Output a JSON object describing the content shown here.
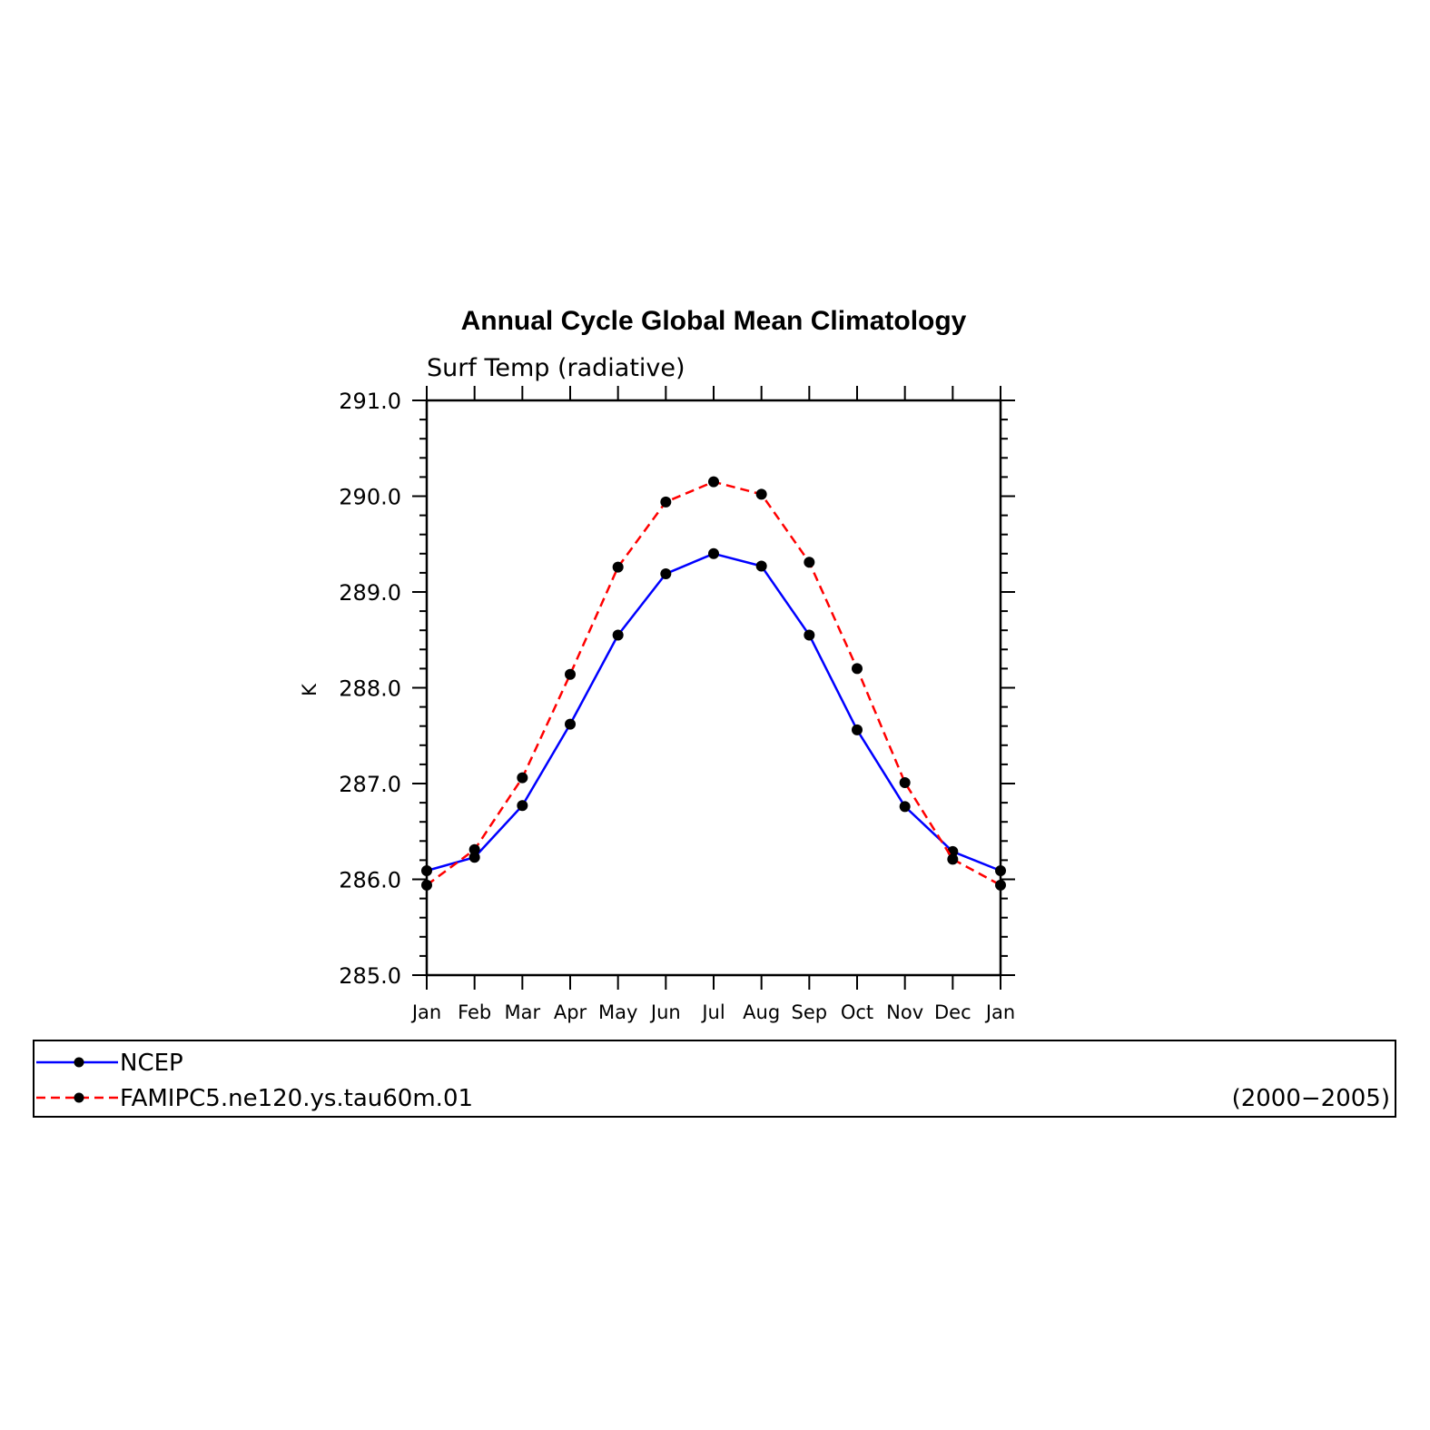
{
  "chart_data": {
    "type": "line",
    "title": "Annual Cycle Global Mean Climatology",
    "subtitle": "Surf Temp (radiative)",
    "xlabel": "",
    "ylabel": "K",
    "ylim": [
      285.0,
      291.0
    ],
    "yticks": [
      "285.0",
      "286.0",
      "287.0",
      "288.0",
      "289.0",
      "290.0",
      "291.0"
    ],
    "categories": [
      "Jan",
      "Feb",
      "Mar",
      "Apr",
      "May",
      "Jun",
      "Jul",
      "Aug",
      "Sep",
      "Oct",
      "Nov",
      "Dec",
      "Jan"
    ],
    "series": [
      {
        "name": "NCEP",
        "color": "#0000ff",
        "line_style": "solid",
        "values": [
          286.09,
          286.23,
          286.77,
          287.62,
          288.55,
          289.19,
          289.4,
          289.27,
          288.55,
          287.56,
          286.76,
          286.29,
          286.09
        ]
      },
      {
        "name": "FAMIPC5.ne120.ys.tau60m.01",
        "color": "#ff0000",
        "line_style": "dashed",
        "values": [
          285.94,
          286.31,
          287.06,
          288.14,
          289.26,
          289.94,
          290.15,
          290.02,
          289.31,
          288.2,
          287.01,
          286.21,
          285.94
        ]
      }
    ],
    "marker_color": "#000000",
    "legend_position": "bottom",
    "legend_note": "(2000−2005)",
    "grid": false
  }
}
